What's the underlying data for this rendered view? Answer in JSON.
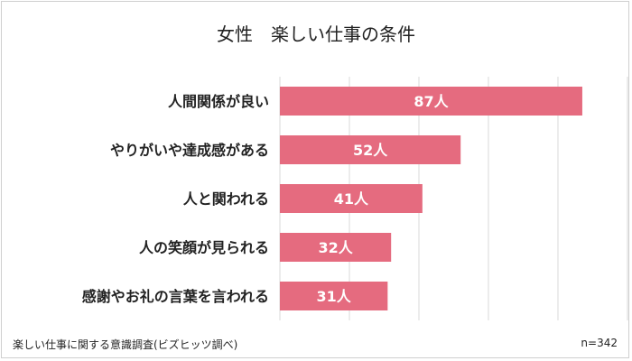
{
  "chart_data": {
    "type": "bar",
    "orientation": "horizontal",
    "title": "女性　楽しい仕事の条件",
    "categories": [
      "人間関係が良い",
      "やりがいや達成感がある",
      "人と関われる",
      "人の笑顔が見られる",
      "感謝やお礼の言葉を言われる"
    ],
    "values": [
      87,
      52,
      41,
      32,
      31
    ],
    "data_labels": [
      "87人",
      "52人",
      "41人",
      "32人",
      "31人"
    ],
    "xlim": [
      0,
      100
    ],
    "grid": true,
    "bar_color": "#e56b7f",
    "label_color": "#ffffff"
  },
  "footer": {
    "source": "楽しい仕事に関する意識調査(ビズヒッツ調べ)",
    "sample": "n=342"
  }
}
